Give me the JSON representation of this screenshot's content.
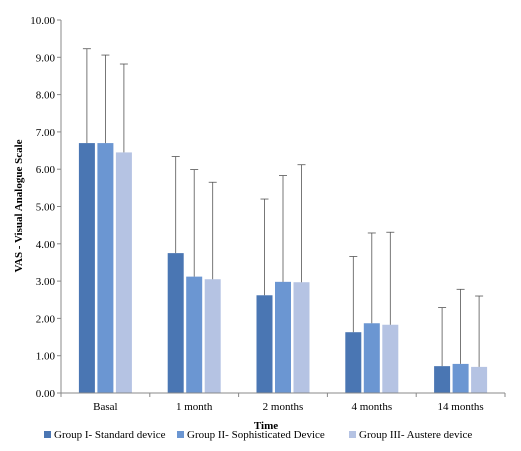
{
  "chart_data": {
    "type": "bar",
    "xlabel": "Time",
    "ylabel": "VAS - Visual Analogue Scale",
    "ylim": [
      0,
      10
    ],
    "ytick_step": 1,
    "ytick_labels": [
      "0.00",
      "1.00",
      "2.00",
      "3.00",
      "4.00",
      "5.00",
      "6.00",
      "7.00",
      "8.00",
      "9.00",
      "10.00"
    ],
    "categories": [
      "Basal",
      "1 month",
      "2 months",
      "4 months",
      "14 months"
    ],
    "series": [
      {
        "name": "Group I- Standard device",
        "color": "#4a76b3",
        "values": [
          6.7,
          3.75,
          2.62,
          1.63,
          0.72
        ],
        "error_upper": [
          9.23,
          6.34,
          5.2,
          3.66,
          2.29
        ]
      },
      {
        "name": "Group II- Sophisticated Device",
        "color": "#6b96d2",
        "values": [
          6.7,
          3.12,
          2.98,
          1.87,
          0.78
        ],
        "error_upper": [
          9.06,
          5.99,
          5.83,
          4.29,
          2.78
        ]
      },
      {
        "name": "Group III- Austere device",
        "color": "#b5c3e3",
        "values": [
          6.45,
          3.05,
          2.97,
          1.83,
          0.7
        ],
        "error_upper": [
          8.82,
          5.65,
          6.12,
          4.31,
          2.6
        ]
      }
    ],
    "legend_position": "bottom",
    "grid": false
  }
}
